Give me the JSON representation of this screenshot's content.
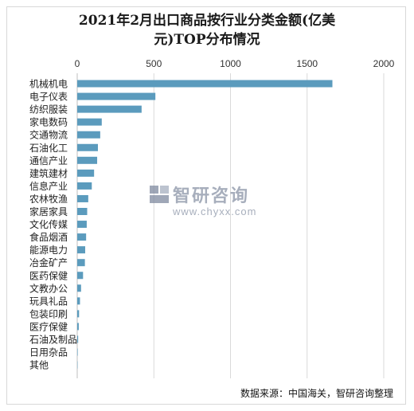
{
  "title_lines": [
    "2021年2月出口商品按行业分类金额(亿美",
    "元)TOP分布情况"
  ],
  "watermark": {
    "brand": "智研咨询",
    "url": "www.chyxx.com"
  },
  "source_note": "数据来源：中国海关，智研咨询整理",
  "colors": {
    "bar": "#5b9bbd",
    "grid": "#d9d9d9"
  },
  "chart_data": {
    "type": "bar",
    "orientation": "horizontal",
    "title": "2021年2月出口商品按行业分类金额(亿美元)TOP分布情况",
    "xlim": [
      0,
      2000
    ],
    "x_ticks": [
      0,
      500,
      1000,
      1500,
      2000
    ],
    "tick_position": "top",
    "grid": true,
    "categories": [
      "机械机电",
      "电子仪表",
      "纺织服装",
      "家电数码",
      "交通物流",
      "石油化工",
      "通信产业",
      "建筑建材",
      "信息产业",
      "农林牧渔",
      "家居家具",
      "文化传媒",
      "食品烟酒",
      "能源电力",
      "冶金矿产",
      "医药保健",
      "文教办公",
      "玩具礼品",
      "包装印刷",
      "医疗保健",
      "石油及制品",
      "日用杂品",
      "其他"
    ],
    "values": [
      1665,
      510,
      420,
      160,
      150,
      135,
      130,
      110,
      95,
      72,
      65,
      62,
      58,
      52,
      50,
      38,
      25,
      18,
      12,
      10,
      6,
      3,
      2
    ]
  }
}
